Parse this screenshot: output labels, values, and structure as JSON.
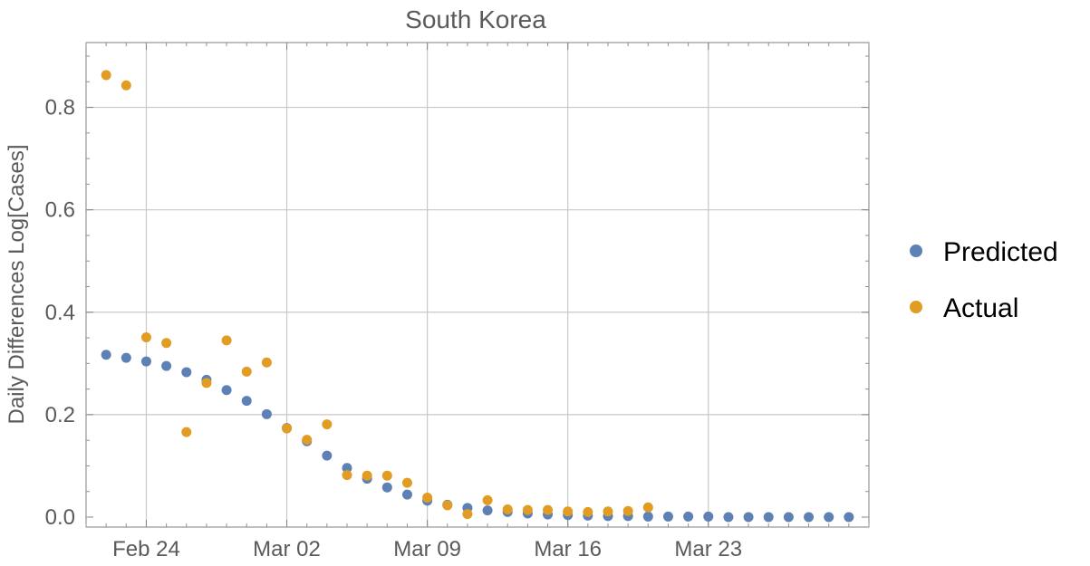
{
  "chart_data": {
    "type": "scatter",
    "title": "South Korea",
    "xlabel": "",
    "ylabel": "Daily Differences Log[Cases]",
    "x_axis": {
      "start": "2020-02-21",
      "end": "2020-03-31",
      "ticks": [
        {
          "date": "2020-02-24",
          "label": "Feb 24"
        },
        {
          "date": "2020-03-02",
          "label": "Mar 02"
        },
        {
          "date": "2020-03-09",
          "label": "Mar 09"
        },
        {
          "date": "2020-03-16",
          "label": "Mar 16"
        },
        {
          "date": "2020-03-23",
          "label": "Mar 23"
        }
      ]
    },
    "ylim": [
      0,
      0.9
    ],
    "y_ticks": [
      {
        "value": 0.0,
        "label": "0.0"
      },
      {
        "value": 0.2,
        "label": "0.2"
      },
      {
        "value": 0.4,
        "label": "0.4"
      },
      {
        "value": 0.6,
        "label": "0.6"
      },
      {
        "value": 0.8,
        "label": "0.8"
      }
    ],
    "grid": true,
    "legend_position": "right",
    "series": [
      {
        "name": "Predicted",
        "color": "#5e81b5",
        "points": [
          {
            "x": "2020-02-22",
            "y": 0.317
          },
          {
            "x": "2020-02-23",
            "y": 0.311
          },
          {
            "x": "2020-02-24",
            "y": 0.304
          },
          {
            "x": "2020-02-25",
            "y": 0.295
          },
          {
            "x": "2020-02-26",
            "y": 0.283
          },
          {
            "x": "2020-02-27",
            "y": 0.268
          },
          {
            "x": "2020-02-28",
            "y": 0.248
          },
          {
            "x": "2020-02-29",
            "y": 0.227
          },
          {
            "x": "2020-03-01",
            "y": 0.201
          },
          {
            "x": "2020-03-02",
            "y": 0.174
          },
          {
            "x": "2020-03-03",
            "y": 0.148
          },
          {
            "x": "2020-03-04",
            "y": 0.12
          },
          {
            "x": "2020-03-05",
            "y": 0.096
          },
          {
            "x": "2020-03-06",
            "y": 0.075
          },
          {
            "x": "2020-03-07",
            "y": 0.058
          },
          {
            "x": "2020-03-08",
            "y": 0.044
          },
          {
            "x": "2020-03-09",
            "y": 0.032
          },
          {
            "x": "2020-03-10",
            "y": 0.024
          },
          {
            "x": "2020-03-11",
            "y": 0.018
          },
          {
            "x": "2020-03-12",
            "y": 0.013
          },
          {
            "x": "2020-03-13",
            "y": 0.01
          },
          {
            "x": "2020-03-14",
            "y": 0.007
          },
          {
            "x": "2020-03-15",
            "y": 0.005
          },
          {
            "x": "2020-03-16",
            "y": 0.004
          },
          {
            "x": "2020-03-17",
            "y": 0.003
          },
          {
            "x": "2020-03-18",
            "y": 0.002
          },
          {
            "x": "2020-03-19",
            "y": 0.002
          },
          {
            "x": "2020-03-20",
            "y": 0.001
          },
          {
            "x": "2020-03-21",
            "y": 0.001
          },
          {
            "x": "2020-03-22",
            "y": 0.001
          },
          {
            "x": "2020-03-23",
            "y": 0.001
          },
          {
            "x": "2020-03-24",
            "y": 0.0
          },
          {
            "x": "2020-03-25",
            "y": 0.0
          },
          {
            "x": "2020-03-26",
            "y": 0.0
          },
          {
            "x": "2020-03-27",
            "y": 0.0
          },
          {
            "x": "2020-03-28",
            "y": 0.0
          },
          {
            "x": "2020-03-29",
            "y": 0.0
          },
          {
            "x": "2020-03-30",
            "y": 0.0
          }
        ]
      },
      {
        "name": "Actual",
        "color": "#e19c24",
        "points": [
          {
            "x": "2020-02-22",
            "y": 0.863
          },
          {
            "x": "2020-02-23",
            "y": 0.843
          },
          {
            "x": "2020-02-24",
            "y": 0.351
          },
          {
            "x": "2020-02-25",
            "y": 0.34
          },
          {
            "x": "2020-02-26",
            "y": 0.166
          },
          {
            "x": "2020-02-27",
            "y": 0.262
          },
          {
            "x": "2020-02-28",
            "y": 0.345
          },
          {
            "x": "2020-02-29",
            "y": 0.284
          },
          {
            "x": "2020-03-01",
            "y": 0.302
          },
          {
            "x": "2020-03-02",
            "y": 0.173
          },
          {
            "x": "2020-03-03",
            "y": 0.151
          },
          {
            "x": "2020-03-04",
            "y": 0.181
          },
          {
            "x": "2020-03-05",
            "y": 0.082
          },
          {
            "x": "2020-03-06",
            "y": 0.081
          },
          {
            "x": "2020-03-07",
            "y": 0.081
          },
          {
            "x": "2020-03-08",
            "y": 0.067
          },
          {
            "x": "2020-03-09",
            "y": 0.038
          },
          {
            "x": "2020-03-10",
            "y": 0.023
          },
          {
            "x": "2020-03-11",
            "y": 0.006
          },
          {
            "x": "2020-03-12",
            "y": 0.033
          },
          {
            "x": "2020-03-13",
            "y": 0.015
          },
          {
            "x": "2020-03-14",
            "y": 0.014
          },
          {
            "x": "2020-03-15",
            "y": 0.014
          },
          {
            "x": "2020-03-16",
            "y": 0.011
          },
          {
            "x": "2020-03-17",
            "y": 0.01
          },
          {
            "x": "2020-03-18",
            "y": 0.011
          },
          {
            "x": "2020-03-19",
            "y": 0.012
          },
          {
            "x": "2020-03-20",
            "y": 0.019
          }
        ]
      }
    ]
  }
}
